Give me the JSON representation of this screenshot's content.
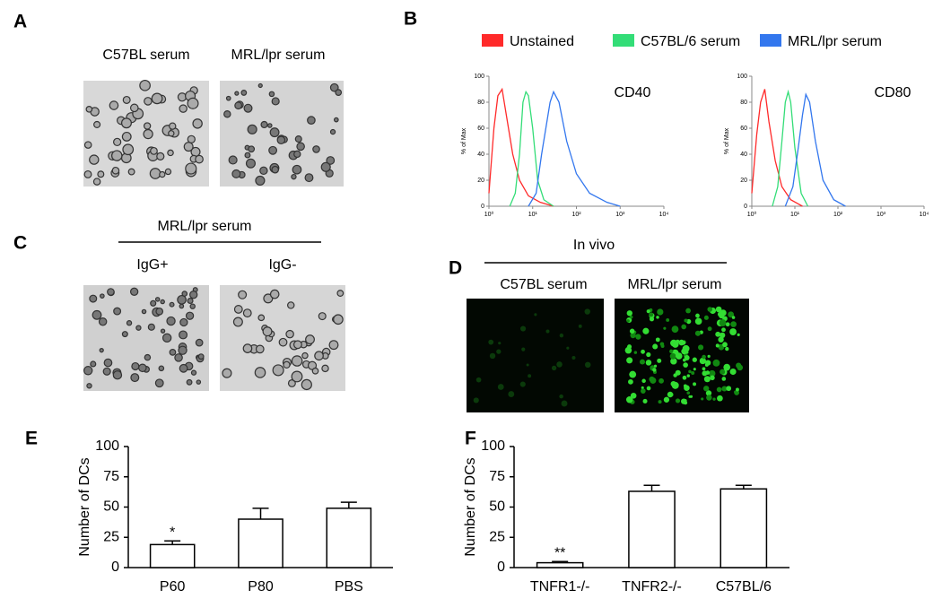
{
  "panel_labels": [
    "A",
    "B",
    "C",
    "D",
    "E",
    "F"
  ],
  "panel_a": {
    "captions": [
      "C57BL serum",
      "MRL/lpr serum"
    ]
  },
  "panel_c": {
    "header": "MRL/lpr serum",
    "captions": [
      "IgG+",
      "IgG-"
    ]
  },
  "panel_d": {
    "header": "In vivo",
    "captions": [
      "C57BL serum",
      "MRL/lpr serum"
    ]
  },
  "chart_data": [
    {
      "type": "line",
      "title": "CD40",
      "xscale": "log",
      "ylabel": "% of Max",
      "xlim": [
        1,
        10000
      ],
      "ylim": [
        0,
        100
      ],
      "xticks": [
        {
          "value": 1,
          "label": "10⁰"
        },
        {
          "value": 10,
          "label": "10¹"
        },
        {
          "value": 100,
          "label": "10²"
        },
        {
          "value": 1000,
          "label": "10³"
        },
        {
          "value": 10000,
          "label": "10⁴"
        }
      ],
      "yticks": [
        0,
        20,
        40,
        60,
        80,
        100
      ],
      "series": [
        {
          "name": "Unstained",
          "color": "#ff2a2a",
          "x": [
            1,
            1.3,
            1.6,
            2,
            2.5,
            3.5,
            5,
            8,
            15,
            30
          ],
          "values": [
            10,
            60,
            85,
            90,
            70,
            40,
            20,
            8,
            3,
            0
          ]
        },
        {
          "name": "C57BL/6 serum",
          "color": "#33dd77",
          "x": [
            3,
            4,
            5,
            6,
            7,
            8,
            10,
            13,
            18,
            30
          ],
          "values": [
            0,
            10,
            40,
            80,
            88,
            85,
            60,
            20,
            5,
            0
          ]
        },
        {
          "name": "MRL/lpr serum",
          "color": "#3377ee",
          "x": [
            8,
            12,
            16,
            20,
            25,
            30,
            40,
            60,
            100,
            200,
            500,
            1000
          ],
          "values": [
            0,
            10,
            40,
            60,
            80,
            88,
            80,
            50,
            25,
            10,
            3,
            0
          ]
        }
      ]
    },
    {
      "type": "line",
      "title": "CD80",
      "xscale": "log",
      "ylabel": "% of Max",
      "xlim": [
        1,
        10000
      ],
      "ylim": [
        0,
        100
      ],
      "xticks": [
        {
          "value": 1,
          "label": "10⁰"
        },
        {
          "value": 10,
          "label": "10¹"
        },
        {
          "value": 100,
          "label": "10²"
        },
        {
          "value": 1000,
          "label": "10³"
        },
        {
          "value": 10000,
          "label": "10⁴"
        }
      ],
      "yticks": [
        0,
        20,
        40,
        60,
        80,
        100
      ],
      "series": [
        {
          "color": "#ff2a2a",
          "x": [
            1,
            1.3,
            1.6,
            2,
            2.5,
            3.5,
            5,
            8,
            15
          ],
          "values": [
            10,
            55,
            80,
            90,
            65,
            35,
            15,
            5,
            0
          ]
        },
        {
          "color": "#33dd77",
          "x": [
            3,
            4,
            5,
            6,
            7,
            8,
            10,
            14,
            20
          ],
          "values": [
            0,
            15,
            50,
            80,
            88,
            80,
            45,
            10,
            0
          ]
        },
        {
          "color": "#3377ee",
          "x": [
            6,
            9,
            12,
            15,
            18,
            22,
            30,
            45,
            80,
            150
          ],
          "values": [
            0,
            15,
            45,
            70,
            86,
            80,
            50,
            20,
            5,
            0
          ]
        }
      ]
    },
    {
      "type": "bar",
      "ylabel": "Number of DCs",
      "categories": [
        "P60",
        "P80",
        "PBS"
      ],
      "values": [
        19,
        40,
        49
      ],
      "errors": [
        3,
        9,
        5
      ],
      "annotations": [
        "*",
        null,
        null
      ],
      "ylim": [
        0,
        100
      ],
      "yticks": [
        0,
        25,
        50,
        75,
        100
      ],
      "color": "#ffffff"
    },
    {
      "type": "bar",
      "ylabel": "Number of DCs",
      "categories": [
        "TNFR1-/-",
        "TNFR2-/-",
        "C57BL/6"
      ],
      "values": [
        4,
        63,
        65
      ],
      "errors": [
        1,
        5,
        3
      ],
      "annotations": [
        "**",
        null,
        null
      ],
      "ylim": [
        0,
        100
      ],
      "yticks": [
        0,
        25,
        50,
        75,
        100
      ],
      "color": "#ffffff"
    }
  ]
}
